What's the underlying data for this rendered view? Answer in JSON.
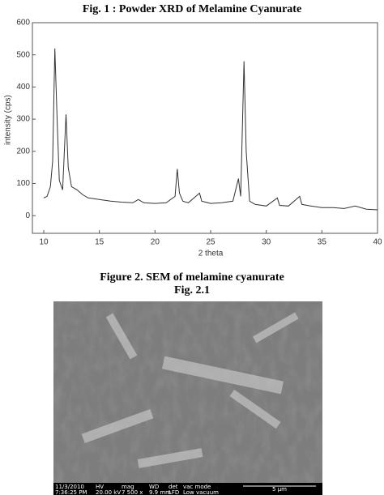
{
  "chart_data": {
    "type": "line",
    "title": "Fig. 1 : Powder XRD of Melamine Cyanurate",
    "x_label": "2 theta",
    "y_label": "intensity (cps)",
    "x": [
      10.0,
      10.3,
      10.6,
      10.8,
      11.0,
      11.2,
      11.4,
      11.7,
      12.0,
      12.2,
      12.5,
      13,
      13.5,
      14,
      15,
      16,
      17,
      18,
      18.5,
      19,
      20,
      21,
      21.8,
      22,
      22.2,
      22.5,
      23,
      24,
      24.2,
      25,
      26,
      27,
      27.5,
      27.7,
      28,
      28.2,
      28.5,
      29,
      30,
      31,
      31.2,
      32,
      33,
      33.2,
      34,
      35,
      36,
      37,
      38,
      39,
      40
    ],
    "values": [
      55,
      60,
      90,
      170,
      520,
      300,
      110,
      80,
      315,
      150,
      90,
      80,
      65,
      55,
      50,
      45,
      42,
      40,
      50,
      40,
      38,
      40,
      60,
      145,
      70,
      45,
      40,
      70,
      45,
      38,
      40,
      45,
      115,
      60,
      480,
      200,
      45,
      35,
      30,
      55,
      32,
      30,
      60,
      35,
      30,
      25,
      25,
      22,
      30,
      20,
      18
    ],
    "color": "#333333",
    "xlim": [
      10,
      40
    ],
    "ylim": [
      -55,
      600
    ],
    "xticks": [
      10,
      15,
      20,
      25,
      30,
      35,
      40
    ],
    "yticks": [
      0,
      100,
      200,
      300,
      400,
      500,
      600
    ]
  },
  "figure2": {
    "caption": "Figure 2. SEM of melamine cyanurate",
    "subcaption": "Fig. 2.1",
    "info_bar": [
      [
        "11/3/2010",
        "7:36:25 PM"
      ],
      [
        "HV",
        "20.00 kV"
      ],
      [
        "mag",
        "7 500 x"
      ],
      [
        "WD",
        "9.9 mm"
      ],
      [
        "det",
        "LFD"
      ],
      [
        "vac mode",
        "Low vacuum"
      ]
    ],
    "scale_bar": "5 µm"
  }
}
